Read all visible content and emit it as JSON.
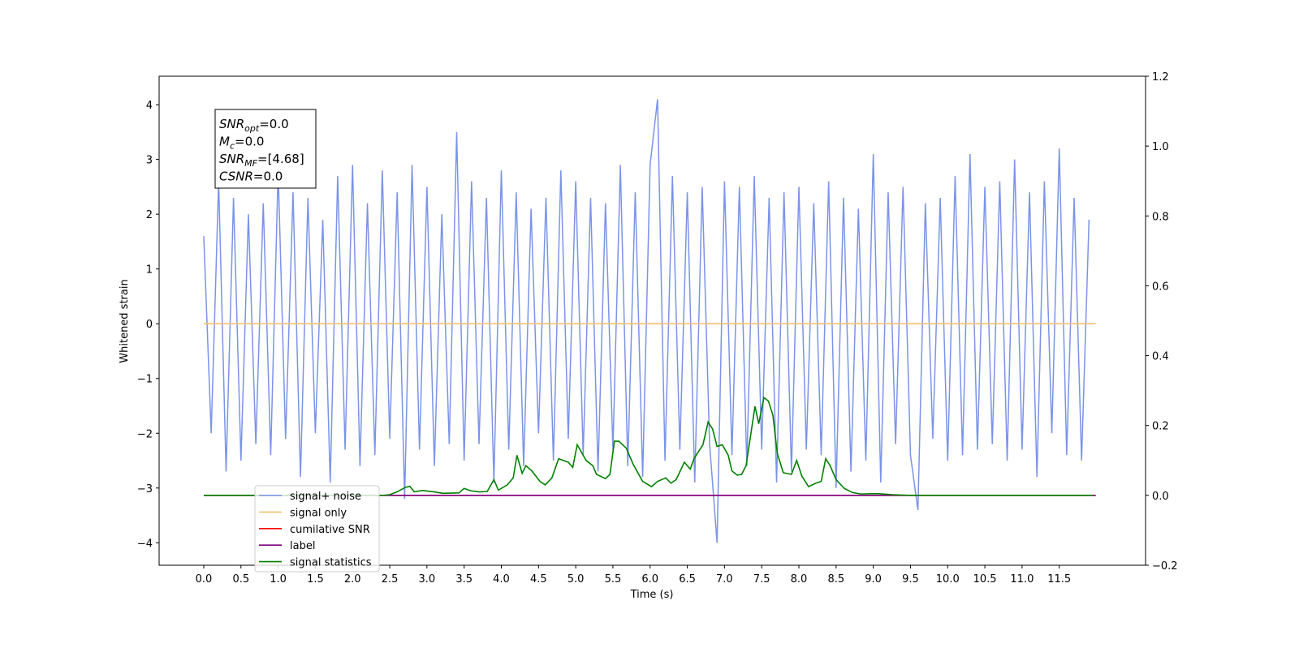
{
  "chart_data": {
    "type": "line",
    "xlabel": "Time (s)",
    "ylabel": "Whitened strain",
    "xlim": [
      -0.6,
      12.66
    ],
    "ylim": [
      -4.41,
      4.52
    ],
    "y2lim": [
      -0.2,
      1.2
    ],
    "xticks": [
      {
        "value": 0,
        "label": "0.0"
      },
      {
        "value": 0.5,
        "label": "0.5"
      },
      {
        "value": 1,
        "label": "1.0"
      },
      {
        "value": 1.5,
        "label": "1.5"
      },
      {
        "value": 2,
        "label": "2.0"
      },
      {
        "value": 2.5,
        "label": "2.5"
      },
      {
        "value": 3,
        "label": "3.0"
      },
      {
        "value": 3.5,
        "label": "3.5"
      },
      {
        "value": 4,
        "label": "4.0"
      },
      {
        "value": 4.5,
        "label": "4.5"
      },
      {
        "value": 5,
        "label": "5.0"
      },
      {
        "value": 5.5,
        "label": "5.5"
      },
      {
        "value": 6,
        "label": "6.0"
      },
      {
        "value": 6.5,
        "label": "6.5"
      },
      {
        "value": 7,
        "label": "7.0"
      },
      {
        "value": 7.5,
        "label": "7.5"
      },
      {
        "value": 8,
        "label": "8.0"
      },
      {
        "value": 8.5,
        "label": "8.5"
      },
      {
        "value": 9,
        "label": "9.0"
      },
      {
        "value": 9.5,
        "label": "9.5"
      },
      {
        "value": 10,
        "label": "10.0"
      },
      {
        "value": 10.5,
        "label": "10.5"
      },
      {
        "value": 11,
        "label": "11.0"
      },
      {
        "value": 11.5,
        "label": "11.5"
      }
    ],
    "yticks": [
      {
        "value": -4,
        "label": "−4"
      },
      {
        "value": -3,
        "label": "−3"
      },
      {
        "value": -2,
        "label": "−2"
      },
      {
        "value": -1,
        "label": "−1"
      },
      0,
      1,
      2,
      3,
      4
    ],
    "y2ticks": [
      {
        "value": -0.2,
        "label": "−0.2"
      },
      {
        "value": 0,
        "label": "0.0"
      },
      {
        "value": 0.2,
        "label": "0.2"
      },
      {
        "value": 0.4,
        "label": "0.4"
      },
      {
        "value": 0.6,
        "label": "0.6"
      },
      {
        "value": 0.8,
        "label": "0.8"
      },
      {
        "value": 1,
        "label": "1.0"
      },
      {
        "value": 1.2,
        "label": "1.2"
      }
    ],
    "annotation": [
      {
        "main": "SNR",
        "sub": "opt",
        "rest": "=0.0"
      },
      {
        "main": "M",
        "sub": "c",
        "rest": "=0.0"
      },
      {
        "main": "SNR",
        "sub": "MF",
        "rest": "=[4.68]"
      },
      {
        "main": "CSNR",
        "sub": null,
        "rest": "=0.0"
      }
    ],
    "series": [
      {
        "name": "signal+ noise",
        "color": "#7b93e8",
        "axis": "y",
        "x": [
          0.0,
          0.1,
          0.2,
          0.3,
          0.4,
          0.5,
          0.6,
          0.7,
          0.8,
          0.9,
          1.0,
          1.1,
          1.2,
          1.3,
          1.4,
          1.5,
          1.6,
          1.7,
          1.8,
          1.9,
          2.0,
          2.1,
          2.2,
          2.3,
          2.4,
          2.5,
          2.6,
          2.7,
          2.8,
          2.9,
          3.0,
          3.1,
          3.2,
          3.3,
          3.4,
          3.5,
          3.6,
          3.7,
          3.8,
          3.9,
          4.0,
          4.1,
          4.2,
          4.3,
          4.4,
          4.5,
          4.6,
          4.7,
          4.8,
          4.9,
          5.0,
          5.1,
          5.2,
          5.3,
          5.4,
          5.5,
          5.6,
          5.7,
          5.8,
          5.9,
          6.0,
          6.1,
          6.2,
          6.3,
          6.4,
          6.5,
          6.6,
          6.7,
          6.8,
          6.9,
          7.0,
          7.1,
          7.2,
          7.3,
          7.4,
          7.5,
          7.6,
          7.7,
          7.8,
          7.9,
          8.0,
          8.1,
          8.2,
          8.3,
          8.4,
          8.5,
          8.6,
          8.7,
          8.8,
          8.9,
          9.0,
          9.1,
          9.2,
          9.3,
          9.4,
          9.5,
          9.6,
          9.7,
          9.8,
          9.9,
          10.0,
          10.1,
          10.2,
          10.3,
          10.4,
          10.5,
          10.6,
          10.7,
          10.8,
          10.9,
          11.0,
          11.1,
          11.2,
          11.3,
          11.4,
          11.5,
          11.6,
          11.7,
          11.8,
          11.9
        ],
        "values": [
          1.6,
          -2.0,
          2.6,
          -2.7,
          2.3,
          -2.5,
          2.0,
          -2.2,
          2.2,
          -2.4,
          2.8,
          -2.1,
          2.4,
          -2.8,
          2.3,
          -2.0,
          1.9,
          -2.9,
          2.7,
          -2.3,
          2.9,
          -2.6,
          2.2,
          -2.4,
          2.8,
          -2.1,
          2.4,
          -3.2,
          2.9,
          -2.3,
          2.5,
          -2.6,
          2.0,
          -2.2,
          3.5,
          -2.5,
          2.6,
          -2.2,
          2.3,
          -2.9,
          2.8,
          -2.3,
          2.4,
          -2.6,
          2.1,
          -2.0,
          2.3,
          -2.5,
          2.8,
          -2.1,
          2.6,
          -2.4,
          2.3,
          -2.7,
          2.2,
          -2.3,
          2.9,
          -2.6,
          2.4,
          -2.8,
          2.9,
          4.1,
          -2.5,
          2.7,
          -2.3,
          2.4,
          -2.9,
          2.5,
          -2.2,
          -4.0,
          2.6,
          -2.4,
          2.5,
          -2.6,
          2.7,
          -2.3,
          2.3,
          -2.9,
          2.4,
          -2.7,
          2.5,
          -2.3,
          2.2,
          -2.4,
          2.6,
          -3.0,
          2.3,
          -2.7,
          2.1,
          -2.5,
          3.1,
          -2.9,
          2.4,
          -2.2,
          2.5,
          -2.4,
          -3.4,
          2.2,
          -2.1,
          2.3,
          -2.5,
          2.7,
          -2.4,
          3.1,
          -2.3,
          2.5,
          -2.2,
          2.6,
          -2.5,
          3.0,
          -2.3,
          2.4,
          -2.8,
          2.6,
          -2.0,
          3.2,
          -2.4,
          2.3,
          -2.5,
          1.9
        ]
      },
      {
        "name": "signal only",
        "color": "#f5c26b",
        "axis": "y",
        "x": [
          0.0,
          11.99
        ],
        "values": [
          0,
          0
        ]
      },
      {
        "name": "cumilative SNR",
        "color": "#ff0000",
        "axis": "y2",
        "x": [
          0.0,
          11.99
        ],
        "values": [
          0,
          0
        ]
      },
      {
        "name": "label",
        "color": "#800080",
        "axis": "y2",
        "x": [
          0.0,
          11.99
        ],
        "values": [
          0,
          0
        ]
      },
      {
        "name": "signal statistics",
        "color": "#008000",
        "axis": "y2",
        "x": [
          0.0,
          2.4,
          2.5,
          2.6,
          2.71,
          2.77,
          2.83,
          2.94,
          3.1,
          3.21,
          3.43,
          3.5,
          3.59,
          3.7,
          3.81,
          3.9,
          3.96,
          4.08,
          4.16,
          4.21,
          4.28,
          4.33,
          4.41,
          4.52,
          4.59,
          4.68,
          4.77,
          4.9,
          4.96,
          5.02,
          5.14,
          5.23,
          5.28,
          5.4,
          5.46,
          5.52,
          5.58,
          5.68,
          5.77,
          5.9,
          6.02,
          6.1,
          6.21,
          6.28,
          6.35,
          6.46,
          6.54,
          6.59,
          6.71,
          6.78,
          6.84,
          6.9,
          6.97,
          7.05,
          7.1,
          7.17,
          7.23,
          7.29,
          7.41,
          7.46,
          7.53,
          7.59,
          7.65,
          7.71,
          7.79,
          7.9,
          7.97,
          8.04,
          8.13,
          8.23,
          8.3,
          8.36,
          8.42,
          8.5,
          8.61,
          8.72,
          8.83,
          9.05,
          9.26,
          9.48,
          11.95
        ],
        "values": [
          0,
          0,
          0.002,
          0.01,
          0.023,
          0.026,
          0.01,
          0.014,
          0.01,
          0.006,
          0.007,
          0.02,
          0.013,
          0.01,
          0.011,
          0.045,
          0.015,
          0.03,
          0.05,
          0.115,
          0.063,
          0.085,
          0.07,
          0.04,
          0.03,
          0.05,
          0.105,
          0.095,
          0.08,
          0.145,
          0.1,
          0.085,
          0.06,
          0.048,
          0.06,
          0.155,
          0.155,
          0.135,
          0.09,
          0.04,
          0.025,
          0.04,
          0.05,
          0.035,
          0.045,
          0.095,
          0.075,
          0.105,
          0.145,
          0.21,
          0.19,
          0.14,
          0.145,
          0.115,
          0.07,
          0.058,
          0.06,
          0.085,
          0.255,
          0.205,
          0.28,
          0.27,
          0.23,
          0.12,
          0.065,
          0.06,
          0.1,
          0.055,
          0.025,
          0.035,
          0.04,
          0.105,
          0.085,
          0.045,
          0.02,
          0.008,
          0.004,
          0.005,
          0.002,
          0,
          0
        ]
      }
    ]
  }
}
